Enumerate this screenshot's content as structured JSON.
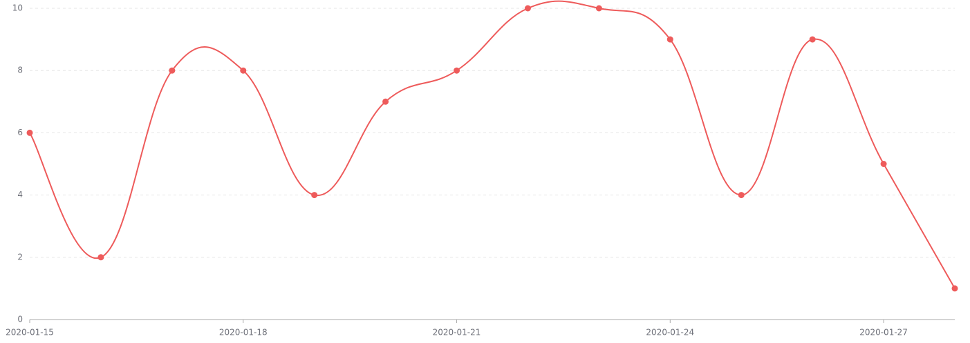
{
  "chart_data": {
    "type": "line",
    "smooth": true,
    "x": [
      "2020-01-15",
      "2020-01-16",
      "2020-01-17",
      "2020-01-18",
      "2020-01-19",
      "2020-01-20",
      "2020-01-21",
      "2020-01-22",
      "2020-01-23",
      "2020-01-24",
      "2020-01-25",
      "2020-01-26",
      "2020-01-27",
      "2020-01-28"
    ],
    "values": [
      6,
      2,
      8,
      8,
      4,
      7,
      8,
      10,
      10,
      9,
      4,
      9,
      5,
      1
    ],
    "color": "#ee5b5b",
    "xlim": [
      "2020-01-15",
      "2020-01-28"
    ],
    "xticks": [
      "2020-01-15",
      "2020-01-18",
      "2020-01-21",
      "2020-01-24",
      "2020-01-27"
    ],
    "ylim": [
      0,
      10
    ],
    "yticks": [
      0,
      2,
      4,
      6,
      8,
      10
    ],
    "grid": true
  }
}
